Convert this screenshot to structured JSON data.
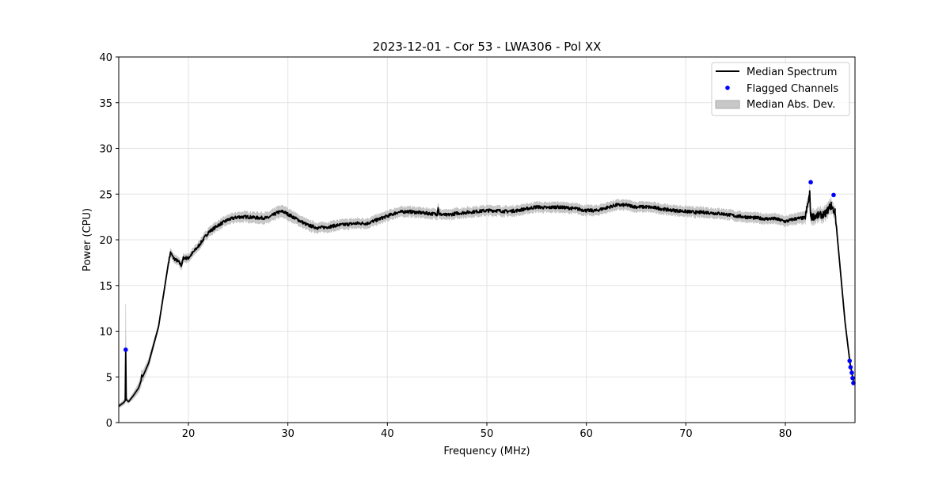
{
  "chart_data": {
    "type": "line",
    "title": "2023-12-01 - Cor 53 - LWA306 - Pol XX",
    "xlabel": "Frequency (MHz)",
    "ylabel": "Power (CPU)",
    "xlim": [
      13,
      87
    ],
    "ylim": [
      0,
      40
    ],
    "xticks": [
      20,
      30,
      40,
      50,
      60,
      70,
      80
    ],
    "yticks": [
      0,
      5,
      10,
      15,
      20,
      25,
      30,
      35,
      40
    ],
    "grid": true,
    "legend_position": "top-right",
    "legend": [
      "Median Spectrum",
      "Flagged Channels",
      "Median Abs. Dev."
    ],
    "colors": {
      "median": "#000000",
      "flagged": "#0000ff",
      "mad": "#c8c8c8"
    },
    "series": [
      {
        "name": "Median Spectrum",
        "x": [
          13.0,
          13.5,
          13.65,
          13.7,
          13.75,
          13.85,
          14,
          14.5,
          15,
          15.25,
          15.3,
          15.4,
          16,
          17,
          17.5,
          18,
          18.2,
          18.5,
          19,
          19.3,
          19.5,
          20,
          21,
          22,
          23,
          24,
          25,
          26,
          27,
          28,
          29,
          29.5,
          30,
          31,
          32,
          33,
          34,
          35,
          36,
          37,
          38,
          39,
          40,
          41,
          42,
          43,
          44,
          45,
          45.1,
          45.2,
          46,
          47,
          48,
          49,
          50,
          51,
          52,
          53,
          54,
          55,
          56,
          57,
          58,
          59,
          60,
          61,
          62,
          63,
          64,
          65,
          66,
          67,
          68,
          69,
          70,
          71,
          72,
          73,
          74,
          75,
          76,
          77,
          78,
          79,
          80,
          81,
          82,
          82.45,
          82.55,
          82.65,
          83,
          84,
          84.6,
          84.8,
          85,
          85.5,
          86,
          86.5,
          86.9
        ],
        "y": [
          1.8,
          2.2,
          2.4,
          8.0,
          2.6,
          2.4,
          2.3,
          3.0,
          3.8,
          4.6,
          5.2,
          5.0,
          6.5,
          10.5,
          14.0,
          17.5,
          18.6,
          18.0,
          17.6,
          17.2,
          18.0,
          18.0,
          19.3,
          20.8,
          21.6,
          22.2,
          22.5,
          22.5,
          22.4,
          22.4,
          23.0,
          23.1,
          22.8,
          22.2,
          21.6,
          21.3,
          21.4,
          21.6,
          21.7,
          21.8,
          21.8,
          22.2,
          22.6,
          23.0,
          23.1,
          23.0,
          22.9,
          22.8,
          23.6,
          22.8,
          22.7,
          22.9,
          23.0,
          23.1,
          23.2,
          23.2,
          23.1,
          23.2,
          23.4,
          23.6,
          23.5,
          23.6,
          23.5,
          23.4,
          23.2,
          23.2,
          23.5,
          23.8,
          23.8,
          23.6,
          23.6,
          23.5,
          23.3,
          23.2,
          23.1,
          23.0,
          23.0,
          22.9,
          22.8,
          22.6,
          22.5,
          22.4,
          22.3,
          22.3,
          22.0,
          22.3,
          22.4,
          25.0,
          22.6,
          22.5,
          22.6,
          22.8,
          23.8,
          23.3,
          23.0,
          17.0,
          11.0,
          6.5,
          4.2
        ]
      },
      {
        "name": "Median Abs. Dev.",
        "x": [
          13.0,
          13.65,
          13.7,
          13.75,
          14,
          15.3,
          17,
          18,
          20,
          25,
          29.5,
          33,
          40,
          45,
          50,
          55,
          60,
          63,
          70,
          80,
          82.5,
          84.8,
          85,
          85.5,
          86,
          86.9
        ],
        "y": [
          0.2,
          0.3,
          5.0,
          0.3,
          0.2,
          0.6,
          0.3,
          0.4,
          0.4,
          0.5,
          0.6,
          0.5,
          0.5,
          0.5,
          0.5,
          0.5,
          0.5,
          0.5,
          0.5,
          0.5,
          0.6,
          0.6,
          0.4,
          0.2,
          0.1,
          0.1
        ]
      },
      {
        "name": "Flagged Channels",
        "x": [
          13.7,
          82.55,
          84.85,
          86.46,
          86.55,
          86.68,
          86.76,
          86.84
        ],
        "y": [
          7.97,
          26.3,
          24.9,
          6.75,
          6.06,
          5.45,
          4.87,
          4.33
        ]
      }
    ]
  }
}
